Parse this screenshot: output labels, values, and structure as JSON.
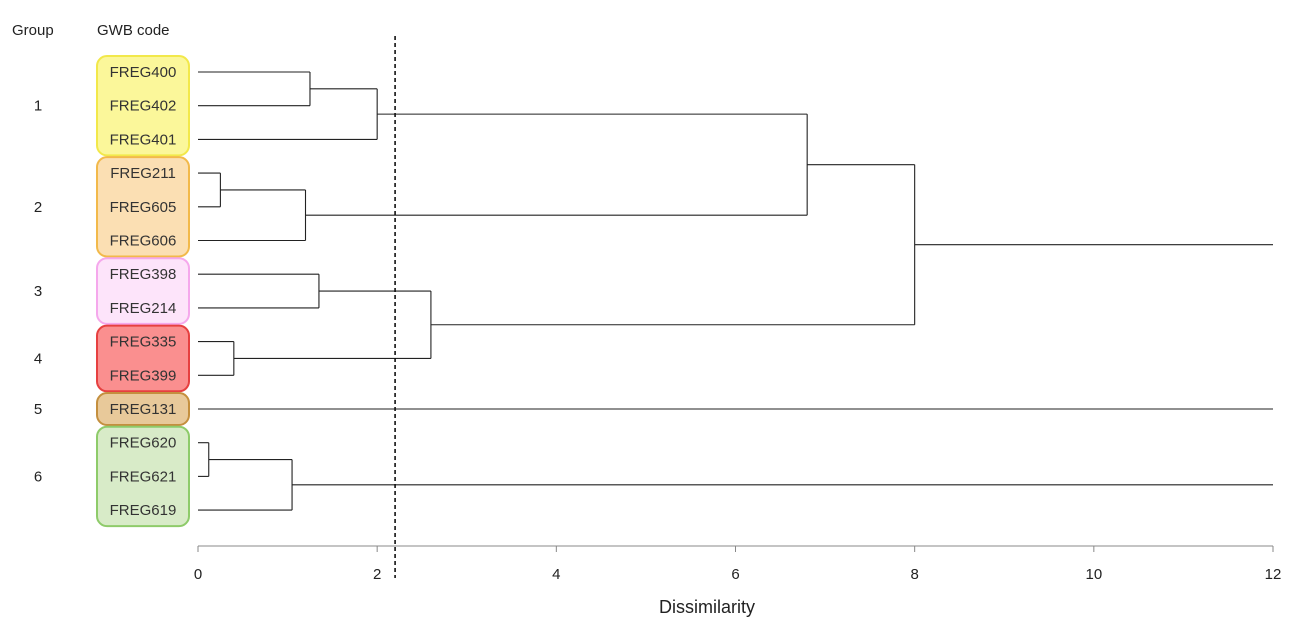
{
  "chart_data": {
    "type": "dendrogram",
    "header": {
      "group": "Group",
      "code": "GWB code"
    },
    "xlabel": "Dissimilarity",
    "xlim": [
      0,
      12
    ],
    "xticks": [
      0,
      2,
      4,
      6,
      8,
      10,
      12
    ],
    "cut_line": 2.2,
    "cut_line_style": "dashed",
    "orientation": "horizontal",
    "leaves": [
      {
        "code": "FREG400",
        "group": "1"
      },
      {
        "code": "FREG402",
        "group": "1"
      },
      {
        "code": "FREG401",
        "group": "1"
      },
      {
        "code": "FREG211",
        "group": "2"
      },
      {
        "code": "FREG605",
        "group": "2"
      },
      {
        "code": "FREG606",
        "group": "2"
      },
      {
        "code": "FREG398",
        "group": "3"
      },
      {
        "code": "FREG214",
        "group": "3"
      },
      {
        "code": "FREG335",
        "group": "4"
      },
      {
        "code": "FREG399",
        "group": "4"
      },
      {
        "code": "FREG131",
        "group": "5"
      },
      {
        "code": "FREG620",
        "group": "6"
      },
      {
        "code": "FREG621",
        "group": "6"
      },
      {
        "code": "FREG619",
        "group": "6"
      }
    ],
    "groups": [
      {
        "label": "1",
        "fill": "#fbf79a",
        "stroke": "#f2e84a"
      },
      {
        "label": "2",
        "fill": "#fbdfb3",
        "stroke": "#f2b94a"
      },
      {
        "label": "3",
        "fill": "#fde4fa",
        "stroke": "#f5a8ec"
      },
      {
        "label": "4",
        "fill": "#fa8f8f",
        "stroke": "#e64040"
      },
      {
        "label": "5",
        "fill": "#e8c99a",
        "stroke": "#c48f3e"
      },
      {
        "label": "6",
        "fill": "#d8ebc8",
        "stroke": "#8ecb6a"
      }
    ],
    "merges": [
      {
        "children": [
          "FREG400",
          "FREG402"
        ],
        "height": 1.25,
        "id": "A"
      },
      {
        "children": [
          "A",
          "FREG401"
        ],
        "height": 2.0,
        "id": "B"
      },
      {
        "children": [
          "FREG211",
          "FREG605"
        ],
        "height": 0.25,
        "id": "C"
      },
      {
        "children": [
          "C",
          "FREG606"
        ],
        "height": 1.2,
        "id": "D"
      },
      {
        "children": [
          "B",
          "D"
        ],
        "height": 6.8,
        "id": "E"
      },
      {
        "children": [
          "FREG398",
          "FREG214"
        ],
        "height": 1.35,
        "id": "F"
      },
      {
        "children": [
          "FREG335",
          "FREG399"
        ],
        "height": 0.4,
        "id": "G"
      },
      {
        "children": [
          "F",
          "G"
        ],
        "height": 2.6,
        "id": "H"
      },
      {
        "children": [
          "E",
          "H"
        ],
        "height": 8.0,
        "id": "I"
      },
      {
        "children": [
          "FREG620",
          "FREG621"
        ],
        "height": 0.12,
        "id": "J"
      },
      {
        "children": [
          "J",
          "FREG619"
        ],
        "height": 1.05,
        "id": "K"
      }
    ],
    "root_extensions": [
      {
        "node": "I",
        "to": 12
      },
      {
        "node": "FREG131",
        "to": 12
      },
      {
        "node": "K",
        "to": 12
      }
    ]
  }
}
